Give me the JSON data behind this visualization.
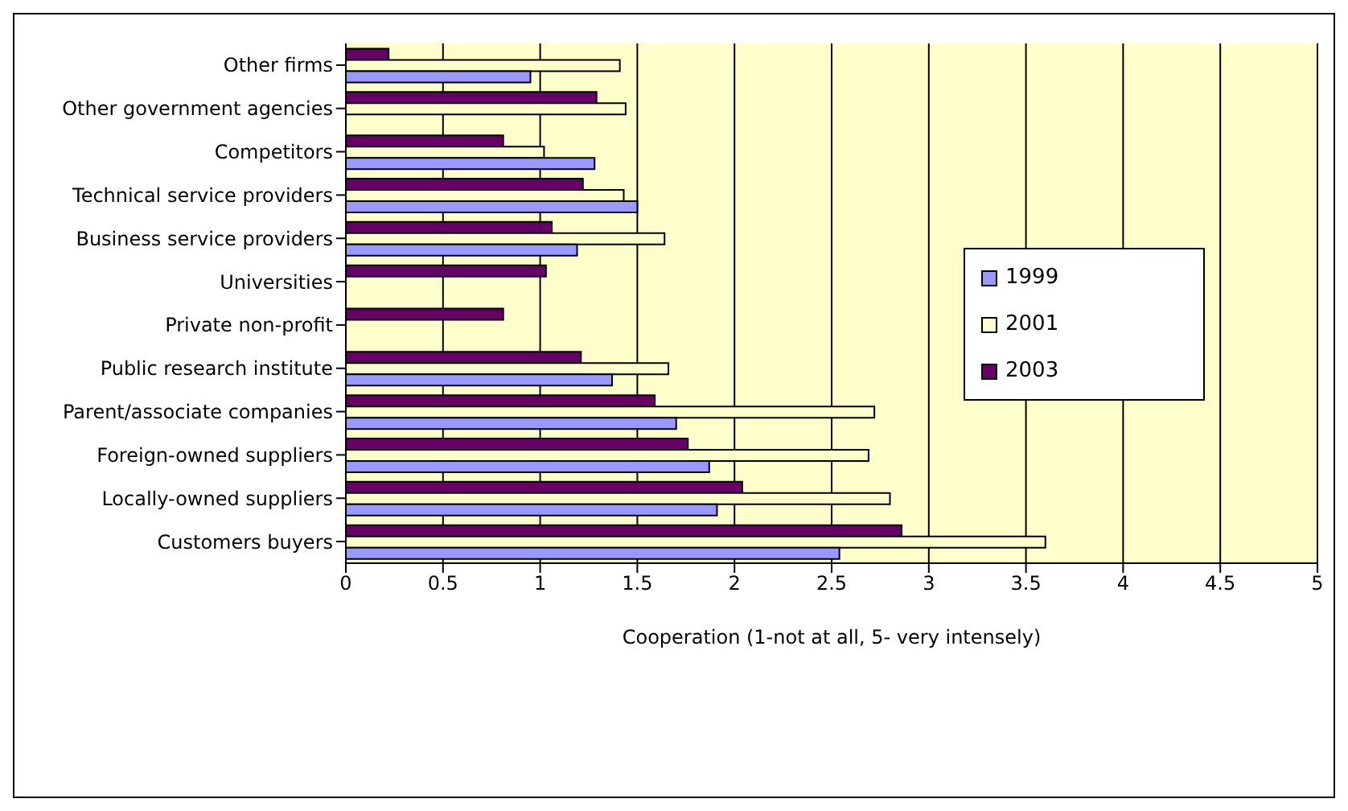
{
  "chart_data": {
    "type": "bar",
    "orientation": "horizontal",
    "xlabel": "Cooperation (1-not at all, 5- very intensely)",
    "categories": [
      "Other firms",
      "Other government agencies",
      "Competitors",
      "Technical service providers",
      "Business service providers",
      "Universities",
      "Private non-profit",
      "Public research institute",
      "Parent/associate companies",
      "Foreign-owned suppliers",
      "Locally-owned suppliers",
      "Customers buyers"
    ],
    "series": [
      {
        "name": "1999",
        "color": "#9999ff",
        "values": [
          0.95,
          null,
          1.28,
          1.5,
          1.19,
          null,
          null,
          1.37,
          1.7,
          1.87,
          1.91,
          2.54
        ]
      },
      {
        "name": "2001",
        "color": "#ffffcc",
        "values": [
          1.41,
          1.44,
          1.02,
          1.43,
          1.64,
          null,
          null,
          1.66,
          2.72,
          2.69,
          2.8,
          3.6
        ]
      },
      {
        "name": "2003",
        "color": "#660066",
        "values": [
          0.22,
          1.29,
          0.81,
          1.22,
          1.06,
          1.03,
          0.81,
          1.21,
          1.59,
          1.76,
          2.04,
          2.86
        ]
      }
    ],
    "xlim": [
      0,
      5
    ],
    "xticks": [
      0,
      0.5,
      1,
      1.5,
      2,
      2.5,
      3,
      3.5,
      4,
      4.5,
      5
    ],
    "grid": "x",
    "legend": "right"
  }
}
